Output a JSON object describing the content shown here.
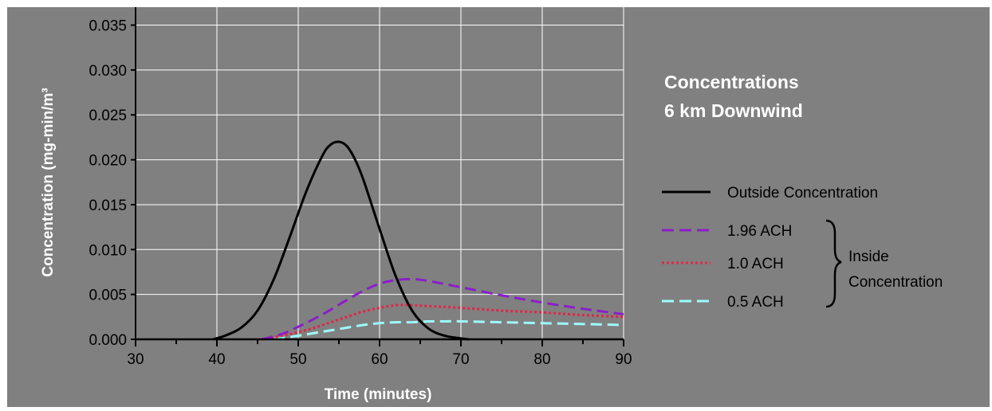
{
  "chart_data": {
    "type": "line",
    "title": [
      "Concentrations",
      "6 km Downwind"
    ],
    "xlabel": "Time (minutes)",
    "ylabel": "Concentration (mg-min/m³",
    "xlim": [
      30,
      90
    ],
    "ylim": [
      0,
      0.037
    ],
    "x_ticks": [
      "30",
      "40",
      "50",
      "60",
      "70",
      "80",
      "90"
    ],
    "y_ticks": [
      "0.000",
      "0.005",
      "0.010",
      "0.015",
      "0.020",
      "0.025",
      "0.030",
      "0.035"
    ],
    "grid": true,
    "legend_position": "right",
    "bracket_label": [
      "Inside",
      "Concentration"
    ],
    "colors": {
      "background": "#808080",
      "grid": "#ffffff",
      "axis": "#000000"
    },
    "series": [
      {
        "name": "Outside Concentration",
        "color": "#000000",
        "style": "solid",
        "x": [
          39.5,
          41,
          43,
          45,
          47,
          49,
          51,
          53,
          54,
          55,
          56,
          57,
          58,
          60,
          62,
          64,
          66,
          68,
          70,
          71
        ],
        "y": [
          0.0,
          0.0004,
          0.0013,
          0.0032,
          0.0067,
          0.0115,
          0.0165,
          0.0205,
          0.0217,
          0.022,
          0.0215,
          0.02,
          0.0178,
          0.0123,
          0.007,
          0.0032,
          0.0012,
          0.0004,
          0.0001,
          0.0
        ]
      },
      {
        "name": "1.96 ACH",
        "color": "#8a1fc8",
        "style": "dashed",
        "x": [
          45.5,
          48,
          50,
          52,
          54,
          56,
          58,
          60,
          62,
          64,
          66,
          70,
          75,
          80,
          85,
          90
        ],
        "y": [
          0.0,
          0.0006,
          0.0014,
          0.0023,
          0.0033,
          0.0044,
          0.0054,
          0.0062,
          0.0066,
          0.0067,
          0.0065,
          0.0058,
          0.0049,
          0.0041,
          0.0034,
          0.0028
        ]
      },
      {
        "name": "1.0 ACH",
        "color": "#e0284a",
        "style": "dotted",
        "x": [
          45.5,
          48,
          50,
          52,
          54,
          56,
          58,
          60,
          62,
          64,
          66,
          70,
          75,
          80,
          85,
          90
        ],
        "y": [
          0.0,
          0.0004,
          0.0008,
          0.0013,
          0.0019,
          0.0025,
          0.0031,
          0.0035,
          0.0038,
          0.0038,
          0.0037,
          0.0035,
          0.0032,
          0.003,
          0.0027,
          0.0025
        ]
      },
      {
        "name": "0.5 ACH",
        "color": "#9efcfc",
        "style": "dashed",
        "x": [
          47,
          50,
          52,
          54,
          56,
          58,
          60,
          62,
          64,
          66,
          68,
          70,
          75,
          80,
          85,
          90
        ],
        "y": [
          0.0,
          0.0004,
          0.0007,
          0.001,
          0.0013,
          0.0016,
          0.0018,
          0.0019,
          0.0019,
          0.002,
          0.002,
          0.002,
          0.0019,
          0.0018,
          0.0017,
          0.0016
        ]
      }
    ]
  }
}
